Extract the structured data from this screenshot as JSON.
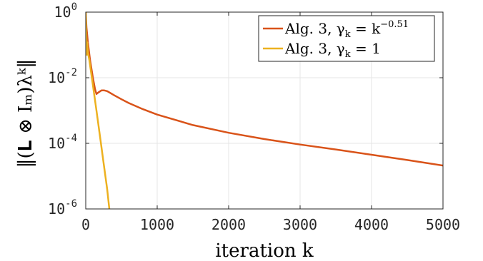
{
  "chart_data": {
    "type": "line",
    "xlabel": "iteration k",
    "ylabel": "‖(𝐋 ⊗ Iₘ)λᵏ‖",
    "xlim": [
      0,
      5000
    ],
    "ylim": [
      1e-06,
      1
    ],
    "yscale": "log",
    "grid": true,
    "legend_position": "top-right",
    "x_ticks": [
      {
        "value": 0,
        "label": "0"
      },
      {
        "value": 1000,
        "label": "1000"
      },
      {
        "value": 2000,
        "label": "2000"
      },
      {
        "value": 3000,
        "label": "3000"
      },
      {
        "value": 4000,
        "label": "4000"
      },
      {
        "value": 5000,
        "label": "5000"
      }
    ],
    "y_ticks": [
      {
        "value": 1,
        "base": "10",
        "exponent": "0"
      },
      {
        "value": 0.01,
        "base": "10",
        "exponent": "-2"
      },
      {
        "value": 0.0001,
        "base": "10",
        "exponent": "-4"
      },
      {
        "value": 1e-06,
        "base": "10",
        "exponent": "-6"
      }
    ],
    "series": [
      {
        "name": "Alg. 3, γk = k^−0.51",
        "legend_main": "Alg. 3, γ",
        "legend_sub": "k",
        "legend_eq": " = k",
        "legend_sup": "−0.51",
        "color": "#d95319",
        "points": [
          [
            0,
            1.0
          ],
          [
            10,
            0.35
          ],
          [
            30,
            0.12
          ],
          [
            60,
            0.035
          ],
          [
            100,
            0.01
          ],
          [
            130,
            0.0045
          ],
          [
            150,
            0.0032
          ],
          [
            180,
            0.0036
          ],
          [
            220,
            0.0041
          ],
          [
            260,
            0.0041
          ],
          [
            300,
            0.0039
          ],
          [
            400,
            0.0029
          ],
          [
            500,
            0.0022
          ],
          [
            600,
            0.0017
          ],
          [
            800,
            0.0011
          ],
          [
            1000,
            0.00075
          ],
          [
            1500,
            0.00036
          ],
          [
            2000,
            0.00021
          ],
          [
            2500,
            0.000135
          ],
          [
            3000,
            9.2e-05
          ],
          [
            3500,
            6.5e-05
          ],
          [
            4000,
            4.5e-05
          ],
          [
            4500,
            3.1e-05
          ],
          [
            5000,
            2.1e-05
          ]
        ]
      },
      {
        "name": "Alg. 3, γk = 1",
        "legend_main": "Alg. 3, γ",
        "legend_sub": "k",
        "legend_eq": " = 1",
        "legend_sup": "",
        "color": "#edb120",
        "points": [
          [
            0,
            1.0
          ],
          [
            15,
            0.05
          ],
          [
            20,
            0.12
          ],
          [
            30,
            0.06
          ],
          [
            50,
            0.035
          ],
          [
            100,
            0.006
          ],
          [
            150,
            0.001
          ],
          [
            200,
            0.00016
          ],
          [
            250,
            2.5e-05
          ],
          [
            300,
            4e-06
          ],
          [
            330,
            1e-06
          ]
        ]
      }
    ]
  }
}
